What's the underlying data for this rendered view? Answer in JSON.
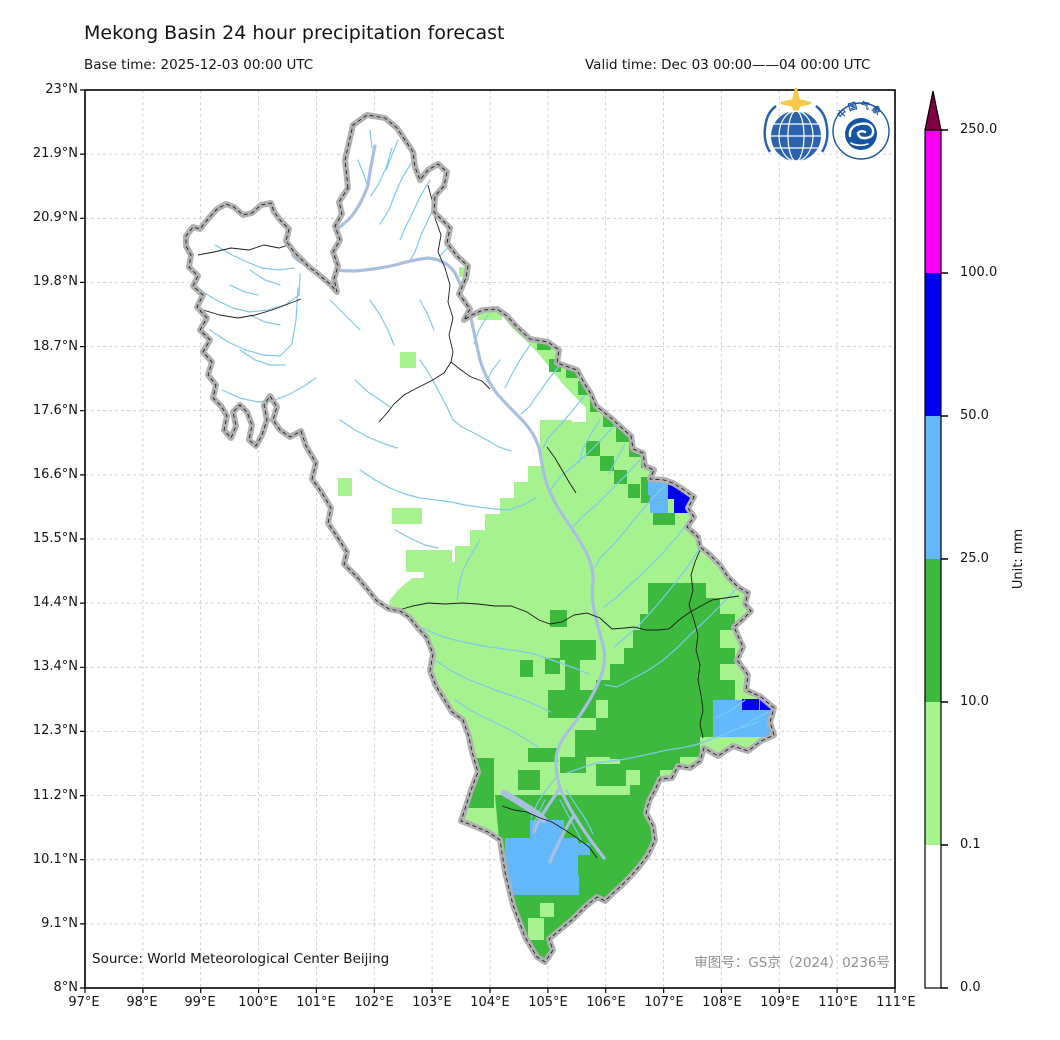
{
  "figure": {
    "title": "Mekong Basin 24 hour precipitation forecast",
    "base_time": "Base time: 2025-12-03 00:00 UTC",
    "valid_time": "Valid time: Dec 03 00:00——04 00:00 UTC"
  },
  "map": {
    "source_note": "Source: World Meteorological Center Beijing",
    "approval_note": "审图号：GS京（2024）0236号",
    "lat_ticks": [
      "23°N",
      "21.9°N",
      "20.9°N",
      "19.8°N",
      "18.7°N",
      "17.6°N",
      "16.6°N",
      "15.5°N",
      "14.4°N",
      "13.4°N",
      "12.3°N",
      "11.2°N",
      "10.1°N",
      "9.1°N",
      "8°N"
    ],
    "lon_ticks": [
      "97°E",
      "98°E",
      "99°E",
      "100°E",
      "101°E",
      "102°E",
      "103°E",
      "104°E",
      "105°E",
      "106°E",
      "107°E",
      "108°E",
      "109°E",
      "110°E",
      "111°E"
    ]
  },
  "colorbar": {
    "unit": "Unit: mm",
    "tick_labels": [
      "250.0",
      "100.0",
      "50.0",
      "25.0",
      "10.0",
      "0.1",
      "0.0"
    ],
    "segments": [
      {
        "range": "0.0 - 0.1",
        "color": "#FFFFFF"
      },
      {
        "range": "0.1 - 10.0",
        "color": "#A6F28F"
      },
      {
        "range": "10.0 - 25.0",
        "color": "#3DBA3D"
      },
      {
        "range": "25.0 - 50.0",
        "color": "#62B8F8"
      },
      {
        "range": "50.0 - 100.0",
        "color": "#0000F0"
      },
      {
        "range": "100.0 - 250.0",
        "color": "#F800F8"
      },
      {
        "range": "> 250.0",
        "color": "#800040"
      }
    ]
  },
  "logos": {
    "cma_text": "中国气象"
  },
  "chart_data": {
    "type": "map",
    "title": "Mekong Basin 24 hour precipitation forecast",
    "variable": "24h accumulated precipitation",
    "unit": "mm",
    "lon_range": [
      97,
      111
    ],
    "lat_range": [
      8,
      23
    ],
    "levels": [
      0.0,
      0.1,
      10.0,
      25.0,
      50.0,
      100.0,
      250.0
    ],
    "level_colors": [
      "#FFFFFF",
      "#A6F28F",
      "#3DBA3D",
      "#62B8F8",
      "#0000F0",
      "#F800F8",
      "#800040"
    ],
    "legend_position": "right",
    "grid": "dashed"
  }
}
